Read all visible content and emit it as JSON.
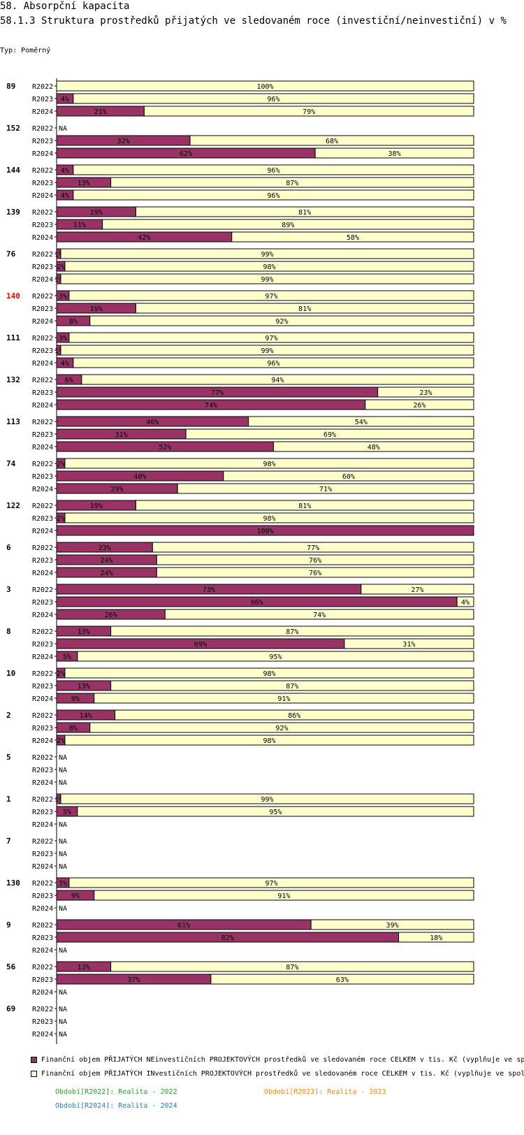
{
  "title": "58. Absorpční kapacita",
  "subtitle": "58.1.3 Struktura prostředků přijatých ve sledovaném roce (investiční/neinvestiční) v %",
  "type_label": "Typ: Poměrný",
  "colors": {
    "neinv": "#993366",
    "inv": "#ffffcc",
    "highlight": "#ff0000",
    "p2022": "#339933",
    "p2023": "#ff8800",
    "p2024": "#3377bb"
  },
  "chart_data": {
    "type": "bar",
    "orientation": "horizontal-stacked-100",
    "years": [
      "R2022",
      "R2023",
      "R2024"
    ],
    "na_label": "NA",
    "series_names": [
      "Finanční objem PŘIJATÝCH NEinvestičních PROJEKTOVÝCH prostředků ve sledovaném roce CELKEM v tis. Kč (vyplňuje ve sp",
      "Finanční objem PŘIJATÝCH INvestičních PROJEKTOVÝCH prostředků ve sledovaném roce CELKEM v tis. Kč (vyplňuje ve spol"
    ],
    "groups": [
      {
        "id": "89",
        "highlight": false,
        "rows": [
          [
            0,
            100
          ],
          [
            4,
            96
          ],
          [
            21,
            79
          ]
        ]
      },
      {
        "id": "152",
        "highlight": false,
        "rows": [
          null,
          [
            32,
            68
          ],
          [
            62,
            38
          ]
        ]
      },
      {
        "id": "144",
        "highlight": false,
        "rows": [
          [
            4,
            96
          ],
          [
            13,
            87
          ],
          [
            4,
            96
          ]
        ]
      },
      {
        "id": "139",
        "highlight": false,
        "rows": [
          [
            19,
            81
          ],
          [
            11,
            89
          ],
          [
            42,
            58
          ]
        ]
      },
      {
        "id": "76",
        "highlight": false,
        "rows": [
          [
            1,
            99
          ],
          [
            2,
            98
          ],
          [
            1,
            99
          ]
        ]
      },
      {
        "id": "140",
        "highlight": true,
        "rows": [
          [
            3,
            97
          ],
          [
            19,
            81
          ],
          [
            8,
            92
          ]
        ]
      },
      {
        "id": "111",
        "highlight": false,
        "rows": [
          [
            3,
            97
          ],
          [
            1,
            99
          ],
          [
            4,
            96
          ]
        ]
      },
      {
        "id": "132",
        "highlight": false,
        "rows": [
          [
            6,
            94
          ],
          [
            77,
            23
          ],
          [
            74,
            26
          ]
        ]
      },
      {
        "id": "113",
        "highlight": false,
        "rows": [
          [
            46,
            54
          ],
          [
            31,
            69
          ],
          [
            52,
            48
          ]
        ]
      },
      {
        "id": "74",
        "highlight": false,
        "rows": [
          [
            2,
            98
          ],
          [
            40,
            60
          ],
          [
            29,
            71
          ]
        ]
      },
      {
        "id": "122",
        "highlight": false,
        "rows": [
          [
            19,
            81
          ],
          [
            2,
            98
          ],
          [
            100,
            0
          ]
        ]
      },
      {
        "id": "6",
        "highlight": false,
        "rows": [
          [
            23,
            77
          ],
          [
            24,
            76
          ],
          [
            24,
            76
          ]
        ]
      },
      {
        "id": "3",
        "highlight": false,
        "rows": [
          [
            73,
            27
          ],
          [
            96,
            4
          ],
          [
            26,
            74
          ]
        ]
      },
      {
        "id": "8",
        "highlight": false,
        "rows": [
          [
            13,
            87
          ],
          [
            69,
            31
          ],
          [
            5,
            95
          ]
        ]
      },
      {
        "id": "10",
        "highlight": false,
        "rows": [
          [
            2,
            98
          ],
          [
            13,
            87
          ],
          [
            9,
            91
          ]
        ]
      },
      {
        "id": "2",
        "highlight": false,
        "rows": [
          [
            14,
            86
          ],
          [
            8,
            92
          ],
          [
            2,
            98
          ]
        ]
      },
      {
        "id": "5",
        "highlight": false,
        "rows": [
          null,
          null,
          null
        ]
      },
      {
        "id": "1",
        "highlight": false,
        "rows": [
          [
            1,
            99
          ],
          [
            5,
            95
          ],
          null
        ]
      },
      {
        "id": "7",
        "highlight": false,
        "rows": [
          null,
          null,
          null
        ]
      },
      {
        "id": "130",
        "highlight": false,
        "rows": [
          [
            3,
            97
          ],
          [
            9,
            91
          ],
          null
        ]
      },
      {
        "id": "9",
        "highlight": false,
        "rows": [
          [
            61,
            39
          ],
          [
            82,
            18
          ],
          null
        ]
      },
      {
        "id": "56",
        "highlight": false,
        "rows": [
          [
            13,
            87
          ],
          [
            37,
            63
          ],
          null
        ]
      },
      {
        "id": "69",
        "highlight": false,
        "rows": [
          null,
          null,
          null
        ]
      }
    ]
  },
  "legend": {
    "neinv": "Finanční objem PŘIJATÝCH NEinvestičních PROJEKTOVÝCH prostředků ve sledovaném roce CELKEM v tis. Kč (vyplňuje ve sp",
    "inv": "Finanční objem PŘIJATÝCH INvestičních PROJEKTOVÝCH prostředků ve sledovaném roce CELKEM v tis. Kč (vyplňuje ve spol"
  },
  "periods": {
    "p2022": "Období[R2022]: Realita - 2022",
    "p2023": "Období[R2023]: Realita - 2023",
    "p2024": "Období[R2024]: Realita - 2024"
  }
}
